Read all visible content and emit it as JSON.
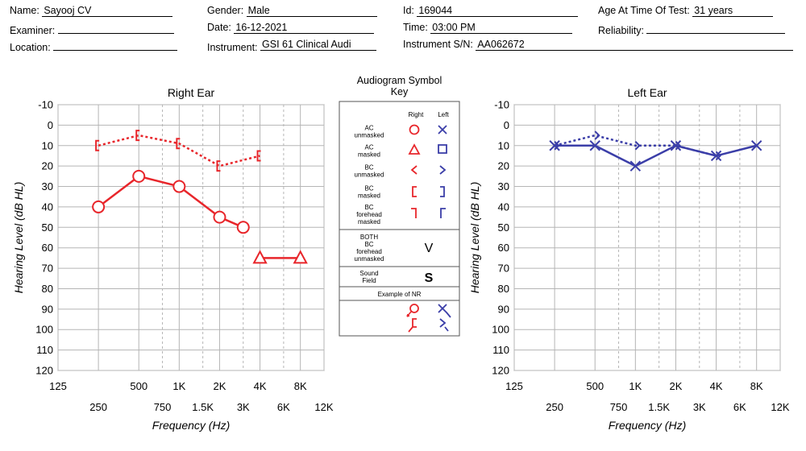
{
  "header": {
    "name_label": "Name:",
    "name_value": "Sayooj CV",
    "examiner_label": "Examiner:",
    "examiner_value": "",
    "location_label": "Location:",
    "location_value": "",
    "gender_label": "Gender:",
    "gender_value": "Male",
    "date_label": "Date:",
    "date_value": "16-12-2021",
    "instrument_label": "Instrument:",
    "instrument_value": "GSI 61 Clinical Audi",
    "id_label": "Id:",
    "id_value": "169044",
    "time_label": "Time:",
    "time_value": "03:00 PM",
    "serial_label": "Instrument S/N:",
    "serial_value": "AA062672",
    "age_label": "Age At Time Of Test:",
    "age_value": "31 years",
    "reliability_label": "Reliability:",
    "reliability_value": ""
  },
  "chart_data": [
    {
      "type": "line",
      "title": "Right Ear",
      "xlabel": "Frequency (Hz)",
      "ylabel": "Hearing Level (dB HL)",
      "x_scale": "log",
      "y_inverted": true,
      "ylim": [
        -10,
        120
      ],
      "y_ticks": [
        "-10",
        "0",
        "10",
        "20",
        "30",
        "40",
        "50",
        "60",
        "70",
        "80",
        "90",
        "100",
        "110",
        "120"
      ],
      "x_ticks_upper": [
        "125",
        "500",
        "1K",
        "2K",
        "4K",
        "8K"
      ],
      "x_ticks_lower": [
        "250",
        "750",
        "1.5K",
        "3K",
        "6K",
        "12K"
      ],
      "color": "#e8262b",
      "series": [
        {
          "name": "AC unmasked",
          "points": [
            [
              250,
              40
            ],
            [
              500,
              25
            ],
            [
              1000,
              30
            ],
            [
              2000,
              45
            ],
            [
              3000,
              50
            ]
          ],
          "connected": true,
          "style": "solid"
        },
        {
          "name": "AC masked",
          "points": [
            [
              4000,
              65
            ],
            [
              8000,
              65
            ]
          ],
          "connected": true,
          "style": "solid"
        },
        {
          "name": "BC masked",
          "points": [
            [
              250,
              10
            ],
            [
              500,
              5
            ],
            [
              1000,
              9
            ],
            [
              2000,
              20
            ],
            [
              4000,
              15
            ]
          ],
          "connected": true,
          "style": "dotted"
        }
      ]
    },
    {
      "type": "line",
      "title": "Left Ear",
      "xlabel": "Frequency (Hz)",
      "ylabel": "Hearing Level (dB HL)",
      "x_scale": "log",
      "y_inverted": true,
      "ylim": [
        -10,
        120
      ],
      "y_ticks": [
        "-10",
        "0",
        "10",
        "20",
        "30",
        "40",
        "50",
        "60",
        "70",
        "80",
        "90",
        "100",
        "110",
        "120"
      ],
      "x_ticks_upper": [
        "125",
        "500",
        "1K",
        "2K",
        "4K",
        "8K"
      ],
      "x_ticks_lower": [
        "250",
        "750",
        "1.5K",
        "3K",
        "6K",
        "12K"
      ],
      "color": "#3b3ea8",
      "series": [
        {
          "name": "AC unmasked",
          "points": [
            [
              250,
              10
            ],
            [
              500,
              10
            ],
            [
              1000,
              20
            ],
            [
              2000,
              10
            ],
            [
              4000,
              15
            ],
            [
              8000,
              10
            ]
          ],
          "connected": true,
          "style": "solid"
        },
        {
          "name": "BC unmasked",
          "points": [
            [
              250,
              10
            ],
            [
              500,
              5
            ],
            [
              1000,
              10
            ],
            [
              2000,
              10
            ],
            [
              4000,
              15
            ]
          ],
          "connected": true,
          "style": "dotted"
        }
      ]
    }
  ],
  "key": {
    "title_line1": "Audiogram Symbol",
    "title_line2": "Key",
    "col_right": "Right",
    "col_left": "Left",
    "rows": [
      {
        "label": [
          "AC",
          "unmasked"
        ]
      },
      {
        "label": [
          "AC",
          "masked"
        ]
      },
      {
        "label": [
          "BC",
          "unmasked"
        ]
      },
      {
        "label": [
          "BC",
          "masked"
        ]
      },
      {
        "label": [
          "BC",
          "forehead",
          "masked"
        ]
      }
    ],
    "both_label": [
      "BOTH",
      "BC",
      "forehead",
      "unmasked"
    ],
    "both_symbol": "V",
    "sound_label": [
      "Sound",
      "Field"
    ],
    "sound_symbol": "S",
    "nr_label": "Example of NR"
  }
}
